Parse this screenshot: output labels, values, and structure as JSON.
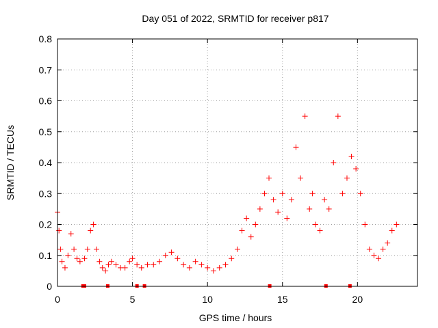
{
  "chart_data": {
    "type": "scatter",
    "title": "Day 051 of 2022, SRMTID for receiver p817",
    "xlabel": "GPS time / hours",
    "ylabel": "SRMTID / TECUs",
    "xlim": [
      0,
      24
    ],
    "ylim": [
      0,
      0.8
    ],
    "x_ticks": [
      0,
      5,
      10,
      15,
      20
    ],
    "y_ticks": [
      0,
      0.1,
      0.2,
      0.3,
      0.4,
      0.5,
      0.6,
      0.7,
      0.8
    ],
    "x_tick_labels": [
      "0",
      "5",
      "10",
      "15",
      "20"
    ],
    "y_tick_labels": [
      "0",
      "0.1",
      "0.2",
      "0.3",
      "0.4",
      "0.5",
      "0.6",
      "0.7",
      "0.8"
    ],
    "grid": true,
    "marker": "+",
    "color": "#ff0000",
    "series": [
      {
        "name": "SRMTID",
        "x": [
          0.0,
          0.1,
          0.2,
          0.3,
          0.5,
          0.7,
          0.9,
          1.1,
          1.3,
          1.5,
          1.8,
          2.0,
          2.2,
          2.4,
          2.6,
          2.8,
          3.0,
          3.2,
          3.4,
          3.6,
          3.9,
          4.2,
          4.5,
          4.8,
          5.0,
          5.3,
          5.6,
          6.0,
          6.4,
          6.8,
          7.2,
          7.6,
          8.0,
          8.4,
          8.8,
          9.2,
          9.6,
          10.0,
          10.4,
          10.8,
          11.2,
          11.6,
          12.0,
          12.3,
          12.6,
          12.9,
          13.2,
          13.5,
          13.8,
          14.1,
          14.4,
          14.7,
          15.0,
          15.3,
          15.6,
          15.9,
          16.2,
          16.5,
          16.8,
          17.0,
          17.2,
          17.5,
          17.8,
          18.1,
          18.4,
          18.7,
          19.0,
          19.3,
          19.6,
          19.9,
          20.2,
          20.5,
          20.8,
          21.1,
          21.4,
          21.7,
          22.0,
          22.3,
          22.6
        ],
        "y": [
          0.24,
          0.18,
          0.12,
          0.08,
          0.06,
          0.1,
          0.17,
          0.12,
          0.09,
          0.08,
          0.09,
          0.12,
          0.18,
          0.2,
          0.12,
          0.08,
          0.06,
          0.05,
          0.07,
          0.08,
          0.07,
          0.06,
          0.06,
          0.08,
          0.09,
          0.07,
          0.06,
          0.07,
          0.07,
          0.08,
          0.1,
          0.11,
          0.09,
          0.07,
          0.06,
          0.08,
          0.07,
          0.06,
          0.05,
          0.06,
          0.07,
          0.09,
          0.12,
          0.18,
          0.22,
          0.16,
          0.2,
          0.25,
          0.3,
          0.35,
          0.28,
          0.24,
          0.3,
          0.22,
          0.28,
          0.45,
          0.35,
          0.55,
          0.25,
          0.3,
          0.2,
          0.18,
          0.28,
          0.25,
          0.4,
          0.55,
          0.3,
          0.35,
          0.42,
          0.38,
          0.3,
          0.2,
          0.12,
          0.1,
          0.09,
          0.12,
          0.14,
          0.18,
          0.2
        ]
      }
    ],
    "zero_markers_x": [
      1.7,
      1.8,
      3.35,
      5.3,
      5.8,
      14.15,
      17.9,
      19.5
    ]
  }
}
